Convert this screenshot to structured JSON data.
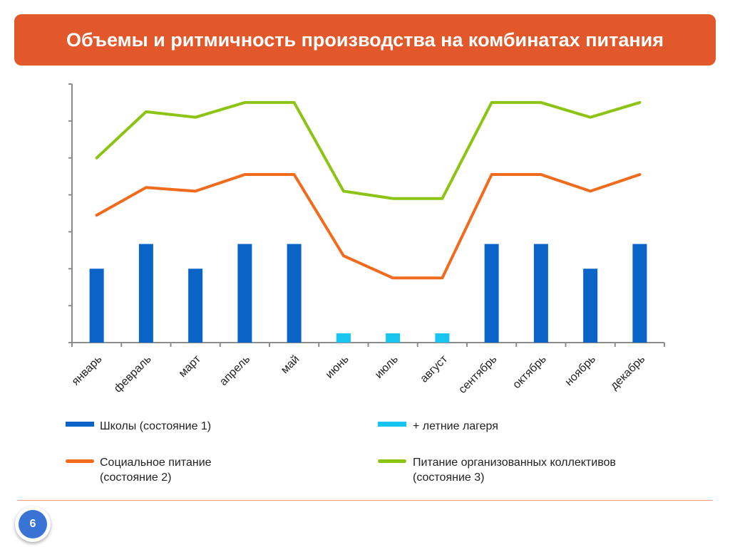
{
  "slide": {
    "title": "Объемы и ритмичность производства на комбинатах питания",
    "page_number": "6"
  },
  "colors": {
    "title_bg": "#E3582A",
    "schools": "#0A64C8",
    "camps": "#18C4F0",
    "social": "#F26A1B",
    "collectives": "#8CC414",
    "axis": "#8C8C8C",
    "badge": "#3A73D6"
  },
  "chart_data": {
    "type": "bar+line",
    "categories": [
      "январь",
      "февраль",
      "март",
      "апрель",
      "май",
      "июнь",
      "июль",
      "август",
      "сентябрь",
      "октябрь",
      "ноябрь",
      "декабрь"
    ],
    "ylim": [
      0,
      7
    ],
    "series": [
      {
        "name": "Школы (состояние 1)",
        "type": "bar",
        "color": "#0A64C8",
        "values": [
          2.0,
          2.67,
          2.0,
          2.67,
          2.67,
          null,
          null,
          null,
          2.67,
          2.67,
          2.0,
          2.67
        ]
      },
      {
        "name": "+ летние лагеря",
        "type": "bar",
        "color": "#18C4F0",
        "values": [
          null,
          null,
          null,
          null,
          null,
          0.25,
          0.25,
          0.25,
          null,
          null,
          null,
          null
        ]
      },
      {
        "name": "Социальное питание (состояние 2)",
        "type": "line",
        "color": "#F26A1B",
        "values": [
          3.45,
          4.2,
          4.1,
          4.55,
          4.55,
          2.35,
          1.75,
          1.75,
          4.55,
          4.55,
          4.1,
          4.55
        ]
      },
      {
        "name": "Питание организованных коллективов (состояние 3)",
        "type": "line",
        "color": "#8CC414",
        "values": [
          5.0,
          6.25,
          6.1,
          6.5,
          6.5,
          4.1,
          3.9,
          3.9,
          6.5,
          6.5,
          6.1,
          6.5
        ]
      }
    ],
    "xlabel": "",
    "ylabel": "",
    "y_tick_labels_shown": false,
    "grid": false,
    "legend_position": "bottom"
  },
  "legend": {
    "schools": "Школы (состояние 1)",
    "camps": "+ летние лагеря",
    "social_line1": "Социальное питание",
    "social_line2": "(состояние 2)",
    "collectives_line1": "Питание организованных коллективов",
    "collectives_line2": "(состояние 3)"
  }
}
